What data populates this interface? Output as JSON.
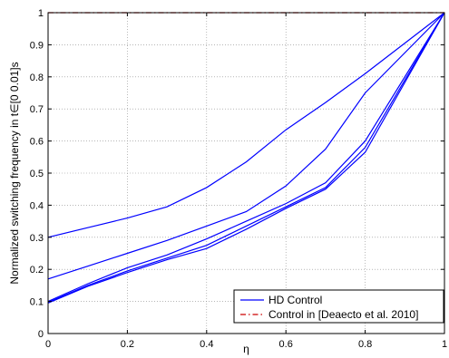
{
  "chart_data": {
    "type": "line",
    "xlabel": "η",
    "ylabel": "Normalized switching frequency  in  t∈[0   0.01]s",
    "xlim": [
      0,
      1
    ],
    "ylim": [
      0,
      1
    ],
    "x_ticks": [
      "0",
      "0.2",
      "0.4",
      "0.6",
      "0.8",
      "1"
    ],
    "y_ticks": [
      "0",
      "0.1",
      "0.2",
      "0.3",
      "0.4",
      "0.5",
      "0.6",
      "0.7",
      "0.8",
      "0.9",
      "1"
    ],
    "grid": true,
    "legend_position": "bottom-right",
    "x": [
      0,
      0.1,
      0.2,
      0.3,
      0.4,
      0.5,
      0.6,
      0.7,
      0.8,
      1.0
    ],
    "series": [
      {
        "name": "HD Control",
        "color": "#0000ff",
        "style": "solid",
        "values": [
          0.3,
          0.33,
          0.36,
          0.395,
          0.455,
          0.535,
          0.635,
          0.72,
          0.81,
          1.0
        ]
      },
      {
        "values": [
          0.17,
          0.21,
          0.25,
          0.29,
          0.335,
          0.38,
          0.46,
          0.575,
          0.75,
          1.0
        ],
        "color": "#0000ff",
        "style": "solid"
      },
      {
        "values": [
          0.1,
          0.155,
          0.205,
          0.245,
          0.295,
          0.35,
          0.405,
          0.47,
          0.6,
          1.0
        ],
        "color": "#0000ff",
        "style": "solid"
      },
      {
        "values": [
          0.097,
          0.15,
          0.195,
          0.235,
          0.275,
          0.335,
          0.395,
          0.455,
          0.58,
          1.0
        ],
        "color": "#0000ff",
        "style": "solid"
      },
      {
        "values": [
          0.095,
          0.147,
          0.19,
          0.23,
          0.265,
          0.325,
          0.39,
          0.45,
          0.565,
          1.0
        ],
        "color": "#0000ff",
        "style": "solid"
      },
      {
        "name": "Control in [Deaecto et al. 2010]",
        "color": "#cc0000",
        "style": "dashdot",
        "values": [
          1,
          1,
          1,
          1,
          1,
          1,
          1,
          1,
          1,
          1
        ]
      }
    ]
  }
}
